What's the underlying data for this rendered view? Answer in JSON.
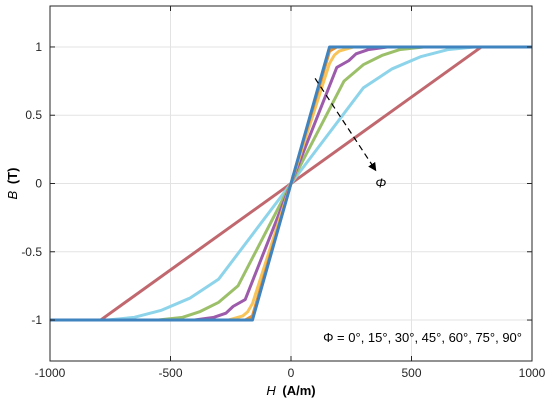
{
  "chart_data": {
    "type": "line",
    "xlabel": {
      "symbol": "H",
      "unit": "(A/m)"
    },
    "ylabel": {
      "symbol": "B",
      "unit": "(T)"
    },
    "xlim": [
      -1000,
      1000
    ],
    "ylim": [
      -1.3,
      1.3
    ],
    "xticks": [
      -1000,
      -500,
      0,
      500,
      1000
    ],
    "xtick_labels": [
      "-1000",
      "-500",
      "0",
      "500",
      "1000"
    ],
    "yticks": [
      -1,
      -0.5,
      0,
      0.5,
      1
    ],
    "ytick_labels": [
      "-1",
      "-0.5",
      "0",
      "0.5",
      "1"
    ],
    "grid": true,
    "arrow_label": "Φ",
    "legend_text": "Φ = 0°, 15°, 30°, 45°, 60°, 75°, 90°",
    "series": [
      {
        "color": "#c1686f",
        "x": [
          -1000,
          -790,
          790,
          1000
        ],
        "y": [
          -1,
          -1,
          1,
          1
        ]
      },
      {
        "color": "#8dd4ea",
        "x": [
          -1000,
          -760,
          -650,
          -540,
          -420,
          -300,
          0,
          300,
          420,
          540,
          650,
          760,
          1000
        ],
        "y": [
          -1,
          -1,
          -0.98,
          -0.93,
          -0.84,
          -0.7,
          0,
          0.7,
          0.84,
          0.93,
          0.98,
          1,
          1
        ]
      },
      {
        "color": "#9cc06a",
        "x": [
          -1000,
          -550,
          -450,
          -380,
          -300,
          -220,
          0,
          220,
          300,
          380,
          450,
          550,
          1000
        ],
        "y": [
          -1,
          -1,
          -0.98,
          -0.94,
          -0.87,
          -0.75,
          0,
          0.75,
          0.87,
          0.94,
          0.98,
          1,
          1
        ]
      },
      {
        "color": "#9d5bab",
        "x": [
          -1000,
          -400,
          -320,
          -270,
          -240,
          -190,
          0,
          190,
          240,
          270,
          320,
          400,
          1000
        ],
        "y": [
          -1,
          -1,
          -0.98,
          -0.95,
          -0.9,
          -0.85,
          0,
          0.85,
          0.9,
          0.95,
          0.98,
          1,
          1
        ]
      },
      {
        "color": "#f7c45a",
        "x": [
          -1000,
          -260,
          -200,
          -180,
          -160,
          0,
          160,
          180,
          200,
          260,
          1000
        ],
        "y": [
          -1,
          -1,
          -0.97,
          -0.94,
          -0.88,
          0,
          0.88,
          0.94,
          0.97,
          1,
          1
        ]
      },
      {
        "color": "#e6902f",
        "x": [
          -1000,
          -190,
          -160,
          0,
          160,
          190,
          1000
        ],
        "y": [
          -1,
          -1,
          -0.97,
          0,
          0.97,
          1,
          1
        ]
      },
      {
        "color": "#3f83bf",
        "x": [
          -1000,
          -160,
          160,
          1000
        ],
        "y": [
          -1,
          -1,
          1,
          1
        ]
      }
    ]
  }
}
